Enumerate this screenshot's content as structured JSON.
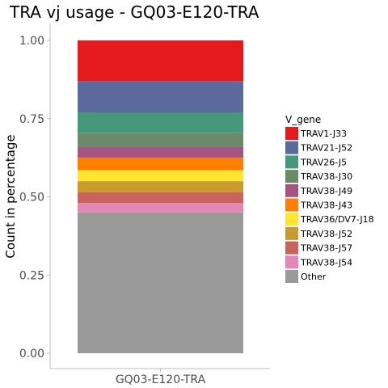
{
  "chart_data": {
    "type": "bar",
    "stacked": true,
    "title": "TRA vj usage - GQ03-E120-TRA",
    "xlabel": "",
    "ylabel": "Count in percentage",
    "categories": [
      "GQ03-E120-TRA"
    ],
    "ylim": [
      0,
      1
    ],
    "y_ticks": [
      "0.00",
      "0.25",
      "0.50",
      "0.75",
      "1.00"
    ],
    "grid": false,
    "legend": {
      "title": "V_gene",
      "position": "right"
    },
    "series": [
      {
        "name": "TRAV1-J33",
        "values": [
          0.13
        ],
        "color": "#e41a1c"
      },
      {
        "name": "TRAV21-J52",
        "values": [
          0.1
        ],
        "color": "#5a6a9c"
      },
      {
        "name": "TRAV26-J5",
        "values": [
          0.065
        ],
        "color": "#46987a"
      },
      {
        "name": "TRAV38-J30",
        "values": [
          0.045
        ],
        "color": "#6a8a6a"
      },
      {
        "name": "TRAV38-J49",
        "values": [
          0.035
        ],
        "color": "#a65480"
      },
      {
        "name": "TRAV38-J43",
        "values": [
          0.04
        ],
        "color": "#ff7f00"
      },
      {
        "name": "TRAV36/DV7-J18",
        "values": [
          0.035
        ],
        "color": "#ffe52e"
      },
      {
        "name": "TRAV38-J52",
        "values": [
          0.035
        ],
        "color": "#c99a2e"
      },
      {
        "name": "TRAV38-J57",
        "values": [
          0.035
        ],
        "color": "#c8645c"
      },
      {
        "name": "TRAV38-J54",
        "values": [
          0.03
        ],
        "color": "#e486b6"
      },
      {
        "name": "Other",
        "values": [
          0.45
        ],
        "color": "#999999"
      }
    ]
  }
}
